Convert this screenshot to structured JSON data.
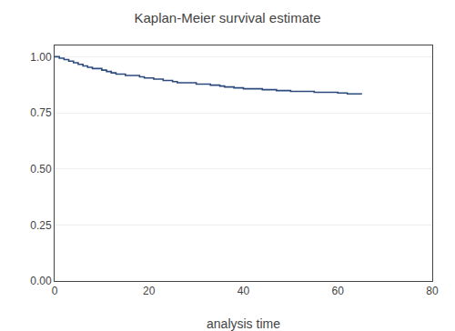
{
  "chart_data": {
    "type": "step",
    "title": "Kaplan-Meier survival estimate",
    "xlabel": "analysis time",
    "x": [
      0,
      1,
      2,
      3,
      4,
      5,
      6,
      7,
      8,
      10,
      11,
      12,
      13,
      15,
      18,
      19,
      21,
      23,
      25,
      26,
      30,
      33,
      35,
      36,
      38,
      40,
      44,
      47,
      50,
      55,
      60,
      62,
      65
    ],
    "values": [
      1.0,
      0.993,
      0.987,
      0.98,
      0.973,
      0.966,
      0.959,
      0.953,
      0.947,
      0.94,
      0.934,
      0.928,
      0.922,
      0.916,
      0.91,
      0.905,
      0.9,
      0.894,
      0.889,
      0.884,
      0.878,
      0.873,
      0.869,
      0.865,
      0.861,
      0.857,
      0.853,
      0.849,
      0.845,
      0.841,
      0.838,
      0.834,
      0.832
    ],
    "color": "#2c4a7c",
    "xlim": [
      0,
      80
    ],
    "ylim": [
      0.0,
      1.05
    ],
    "xticks": [
      0,
      20,
      40,
      60,
      80
    ],
    "yticks": [
      {
        "value": 0.0,
        "label": "0.00"
      },
      0.25,
      {
        "value": 0.5,
        "label": "0.50"
      },
      0.75,
      {
        "value": 1.0,
        "label": "1.00"
      }
    ],
    "grid": "y"
  }
}
